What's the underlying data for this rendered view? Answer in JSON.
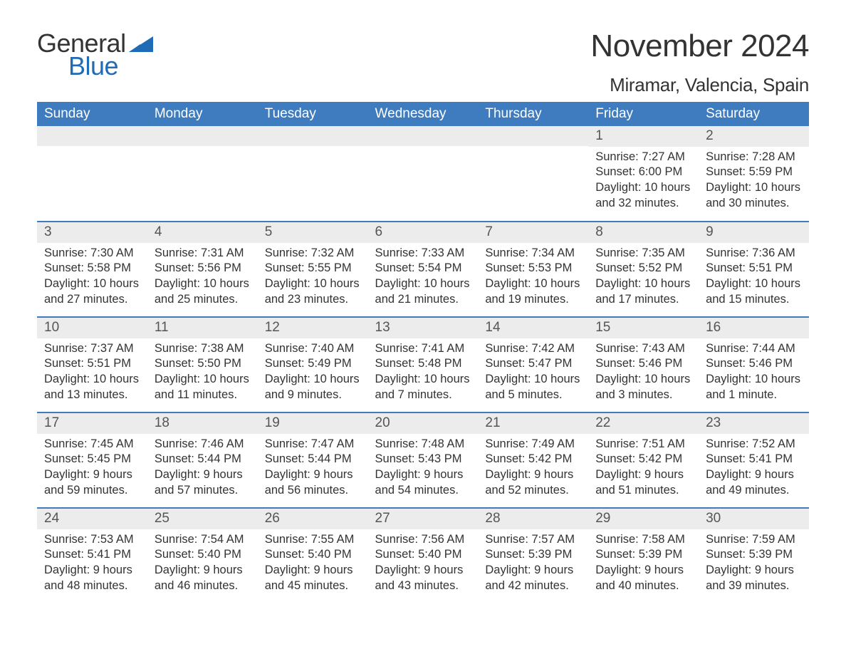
{
  "logo": {
    "line1": "General",
    "line2": "Blue",
    "icon_color": "#1f6bb5",
    "text_color": "#333333"
  },
  "title": "November 2024",
  "location": "Miramar, Valencia, Spain",
  "colors": {
    "header_bg": "#3f7cbf",
    "header_text": "#ffffff",
    "row_border": "#3f7cbf",
    "daynum_bg": "#ececec",
    "daynum_text": "#555555",
    "body_text": "#333333",
    "page_bg": "#ffffff"
  },
  "fonts": {
    "title_size_pt": 33,
    "location_size_pt": 20,
    "header_size_pt": 14,
    "daynum_size_pt": 14,
    "body_size_pt": 12
  },
  "weekday_headers": [
    "Sunday",
    "Monday",
    "Tuesday",
    "Wednesday",
    "Thursday",
    "Friday",
    "Saturday"
  ],
  "weeks": [
    [
      null,
      null,
      null,
      null,
      null,
      {
        "num": "1",
        "sunrise": "Sunrise: 7:27 AM",
        "sunset": "Sunset: 6:00 PM",
        "daylight": "Daylight: 10 hours and 32 minutes."
      },
      {
        "num": "2",
        "sunrise": "Sunrise: 7:28 AM",
        "sunset": "Sunset: 5:59 PM",
        "daylight": "Daylight: 10 hours and 30 minutes."
      }
    ],
    [
      {
        "num": "3",
        "sunrise": "Sunrise: 7:30 AM",
        "sunset": "Sunset: 5:58 PM",
        "daylight": "Daylight: 10 hours and 27 minutes."
      },
      {
        "num": "4",
        "sunrise": "Sunrise: 7:31 AM",
        "sunset": "Sunset: 5:56 PM",
        "daylight": "Daylight: 10 hours and 25 minutes."
      },
      {
        "num": "5",
        "sunrise": "Sunrise: 7:32 AM",
        "sunset": "Sunset: 5:55 PM",
        "daylight": "Daylight: 10 hours and 23 minutes."
      },
      {
        "num": "6",
        "sunrise": "Sunrise: 7:33 AM",
        "sunset": "Sunset: 5:54 PM",
        "daylight": "Daylight: 10 hours and 21 minutes."
      },
      {
        "num": "7",
        "sunrise": "Sunrise: 7:34 AM",
        "sunset": "Sunset: 5:53 PM",
        "daylight": "Daylight: 10 hours and 19 minutes."
      },
      {
        "num": "8",
        "sunrise": "Sunrise: 7:35 AM",
        "sunset": "Sunset: 5:52 PM",
        "daylight": "Daylight: 10 hours and 17 minutes."
      },
      {
        "num": "9",
        "sunrise": "Sunrise: 7:36 AM",
        "sunset": "Sunset: 5:51 PM",
        "daylight": "Daylight: 10 hours and 15 minutes."
      }
    ],
    [
      {
        "num": "10",
        "sunrise": "Sunrise: 7:37 AM",
        "sunset": "Sunset: 5:51 PM",
        "daylight": "Daylight: 10 hours and 13 minutes."
      },
      {
        "num": "11",
        "sunrise": "Sunrise: 7:38 AM",
        "sunset": "Sunset: 5:50 PM",
        "daylight": "Daylight: 10 hours and 11 minutes."
      },
      {
        "num": "12",
        "sunrise": "Sunrise: 7:40 AM",
        "sunset": "Sunset: 5:49 PM",
        "daylight": "Daylight: 10 hours and 9 minutes."
      },
      {
        "num": "13",
        "sunrise": "Sunrise: 7:41 AM",
        "sunset": "Sunset: 5:48 PM",
        "daylight": "Daylight: 10 hours and 7 minutes."
      },
      {
        "num": "14",
        "sunrise": "Sunrise: 7:42 AM",
        "sunset": "Sunset: 5:47 PM",
        "daylight": "Daylight: 10 hours and 5 minutes."
      },
      {
        "num": "15",
        "sunrise": "Sunrise: 7:43 AM",
        "sunset": "Sunset: 5:46 PM",
        "daylight": "Daylight: 10 hours and 3 minutes."
      },
      {
        "num": "16",
        "sunrise": "Sunrise: 7:44 AM",
        "sunset": "Sunset: 5:46 PM",
        "daylight": "Daylight: 10 hours and 1 minute."
      }
    ],
    [
      {
        "num": "17",
        "sunrise": "Sunrise: 7:45 AM",
        "sunset": "Sunset: 5:45 PM",
        "daylight": "Daylight: 9 hours and 59 minutes."
      },
      {
        "num": "18",
        "sunrise": "Sunrise: 7:46 AM",
        "sunset": "Sunset: 5:44 PM",
        "daylight": "Daylight: 9 hours and 57 minutes."
      },
      {
        "num": "19",
        "sunrise": "Sunrise: 7:47 AM",
        "sunset": "Sunset: 5:44 PM",
        "daylight": "Daylight: 9 hours and 56 minutes."
      },
      {
        "num": "20",
        "sunrise": "Sunrise: 7:48 AM",
        "sunset": "Sunset: 5:43 PM",
        "daylight": "Daylight: 9 hours and 54 minutes."
      },
      {
        "num": "21",
        "sunrise": "Sunrise: 7:49 AM",
        "sunset": "Sunset: 5:42 PM",
        "daylight": "Daylight: 9 hours and 52 minutes."
      },
      {
        "num": "22",
        "sunrise": "Sunrise: 7:51 AM",
        "sunset": "Sunset: 5:42 PM",
        "daylight": "Daylight: 9 hours and 51 minutes."
      },
      {
        "num": "23",
        "sunrise": "Sunrise: 7:52 AM",
        "sunset": "Sunset: 5:41 PM",
        "daylight": "Daylight: 9 hours and 49 minutes."
      }
    ],
    [
      {
        "num": "24",
        "sunrise": "Sunrise: 7:53 AM",
        "sunset": "Sunset: 5:41 PM",
        "daylight": "Daylight: 9 hours and 48 minutes."
      },
      {
        "num": "25",
        "sunrise": "Sunrise: 7:54 AM",
        "sunset": "Sunset: 5:40 PM",
        "daylight": "Daylight: 9 hours and 46 minutes."
      },
      {
        "num": "26",
        "sunrise": "Sunrise: 7:55 AM",
        "sunset": "Sunset: 5:40 PM",
        "daylight": "Daylight: 9 hours and 45 minutes."
      },
      {
        "num": "27",
        "sunrise": "Sunrise: 7:56 AM",
        "sunset": "Sunset: 5:40 PM",
        "daylight": "Daylight: 9 hours and 43 minutes."
      },
      {
        "num": "28",
        "sunrise": "Sunrise: 7:57 AM",
        "sunset": "Sunset: 5:39 PM",
        "daylight": "Daylight: 9 hours and 42 minutes."
      },
      {
        "num": "29",
        "sunrise": "Sunrise: 7:58 AM",
        "sunset": "Sunset: 5:39 PM",
        "daylight": "Daylight: 9 hours and 40 minutes."
      },
      {
        "num": "30",
        "sunrise": "Sunrise: 7:59 AM",
        "sunset": "Sunset: 5:39 PM",
        "daylight": "Daylight: 9 hours and 39 minutes."
      }
    ]
  ]
}
